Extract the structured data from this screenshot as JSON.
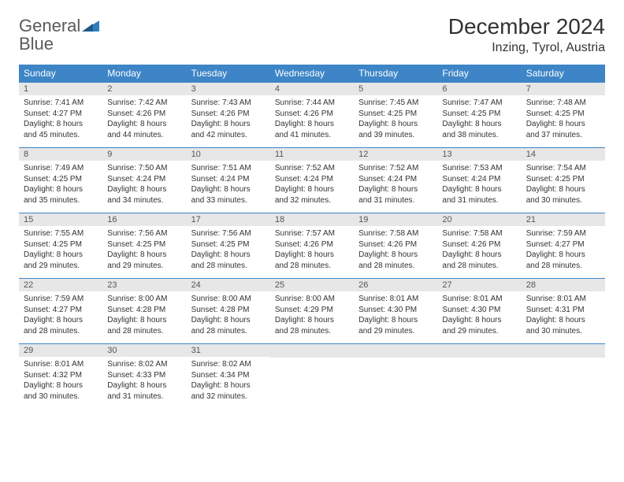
{
  "logo": {
    "word1": "General",
    "word2": "Blue"
  },
  "title": "December 2024",
  "location": "Inzing, Tyrol, Austria",
  "colors": {
    "header_bg": "#3d85c6",
    "header_text": "#ffffff",
    "daynum_bg": "#e7e7e7",
    "daynum_text": "#555555",
    "body_text": "#333333",
    "rule": "#3d85c6",
    "logo_gray": "#5a5a5a",
    "logo_blue": "#2f7ec2"
  },
  "day_names": [
    "Sunday",
    "Monday",
    "Tuesday",
    "Wednesday",
    "Thursday",
    "Friday",
    "Saturday"
  ],
  "weeks": [
    [
      {
        "n": "1",
        "sr": "7:41 AM",
        "ss": "4:27 PM",
        "dl": "8 hours and 45 minutes."
      },
      {
        "n": "2",
        "sr": "7:42 AM",
        "ss": "4:26 PM",
        "dl": "8 hours and 44 minutes."
      },
      {
        "n": "3",
        "sr": "7:43 AM",
        "ss": "4:26 PM",
        "dl": "8 hours and 42 minutes."
      },
      {
        "n": "4",
        "sr": "7:44 AM",
        "ss": "4:26 PM",
        "dl": "8 hours and 41 minutes."
      },
      {
        "n": "5",
        "sr": "7:45 AM",
        "ss": "4:25 PM",
        "dl": "8 hours and 39 minutes."
      },
      {
        "n": "6",
        "sr": "7:47 AM",
        "ss": "4:25 PM",
        "dl": "8 hours and 38 minutes."
      },
      {
        "n": "7",
        "sr": "7:48 AM",
        "ss": "4:25 PM",
        "dl": "8 hours and 37 minutes."
      }
    ],
    [
      {
        "n": "8",
        "sr": "7:49 AM",
        "ss": "4:25 PM",
        "dl": "8 hours and 35 minutes."
      },
      {
        "n": "9",
        "sr": "7:50 AM",
        "ss": "4:24 PM",
        "dl": "8 hours and 34 minutes."
      },
      {
        "n": "10",
        "sr": "7:51 AM",
        "ss": "4:24 PM",
        "dl": "8 hours and 33 minutes."
      },
      {
        "n": "11",
        "sr": "7:52 AM",
        "ss": "4:24 PM",
        "dl": "8 hours and 32 minutes."
      },
      {
        "n": "12",
        "sr": "7:52 AM",
        "ss": "4:24 PM",
        "dl": "8 hours and 31 minutes."
      },
      {
        "n": "13",
        "sr": "7:53 AM",
        "ss": "4:24 PM",
        "dl": "8 hours and 31 minutes."
      },
      {
        "n": "14",
        "sr": "7:54 AM",
        "ss": "4:25 PM",
        "dl": "8 hours and 30 minutes."
      }
    ],
    [
      {
        "n": "15",
        "sr": "7:55 AM",
        "ss": "4:25 PM",
        "dl": "8 hours and 29 minutes."
      },
      {
        "n": "16",
        "sr": "7:56 AM",
        "ss": "4:25 PM",
        "dl": "8 hours and 29 minutes."
      },
      {
        "n": "17",
        "sr": "7:56 AM",
        "ss": "4:25 PM",
        "dl": "8 hours and 28 minutes."
      },
      {
        "n": "18",
        "sr": "7:57 AM",
        "ss": "4:26 PM",
        "dl": "8 hours and 28 minutes."
      },
      {
        "n": "19",
        "sr": "7:58 AM",
        "ss": "4:26 PM",
        "dl": "8 hours and 28 minutes."
      },
      {
        "n": "20",
        "sr": "7:58 AM",
        "ss": "4:26 PM",
        "dl": "8 hours and 28 minutes."
      },
      {
        "n": "21",
        "sr": "7:59 AM",
        "ss": "4:27 PM",
        "dl": "8 hours and 28 minutes."
      }
    ],
    [
      {
        "n": "22",
        "sr": "7:59 AM",
        "ss": "4:27 PM",
        "dl": "8 hours and 28 minutes."
      },
      {
        "n": "23",
        "sr": "8:00 AM",
        "ss": "4:28 PM",
        "dl": "8 hours and 28 minutes."
      },
      {
        "n": "24",
        "sr": "8:00 AM",
        "ss": "4:28 PM",
        "dl": "8 hours and 28 minutes."
      },
      {
        "n": "25",
        "sr": "8:00 AM",
        "ss": "4:29 PM",
        "dl": "8 hours and 28 minutes."
      },
      {
        "n": "26",
        "sr": "8:01 AM",
        "ss": "4:30 PM",
        "dl": "8 hours and 29 minutes."
      },
      {
        "n": "27",
        "sr": "8:01 AM",
        "ss": "4:30 PM",
        "dl": "8 hours and 29 minutes."
      },
      {
        "n": "28",
        "sr": "8:01 AM",
        "ss": "4:31 PM",
        "dl": "8 hours and 30 minutes."
      }
    ],
    [
      {
        "n": "29",
        "sr": "8:01 AM",
        "ss": "4:32 PM",
        "dl": "8 hours and 30 minutes."
      },
      {
        "n": "30",
        "sr": "8:02 AM",
        "ss": "4:33 PM",
        "dl": "8 hours and 31 minutes."
      },
      {
        "n": "31",
        "sr": "8:02 AM",
        "ss": "4:34 PM",
        "dl": "8 hours and 32 minutes."
      },
      null,
      null,
      null,
      null
    ]
  ],
  "labels": {
    "sunrise": "Sunrise:",
    "sunset": "Sunset:",
    "daylight": "Daylight:"
  }
}
